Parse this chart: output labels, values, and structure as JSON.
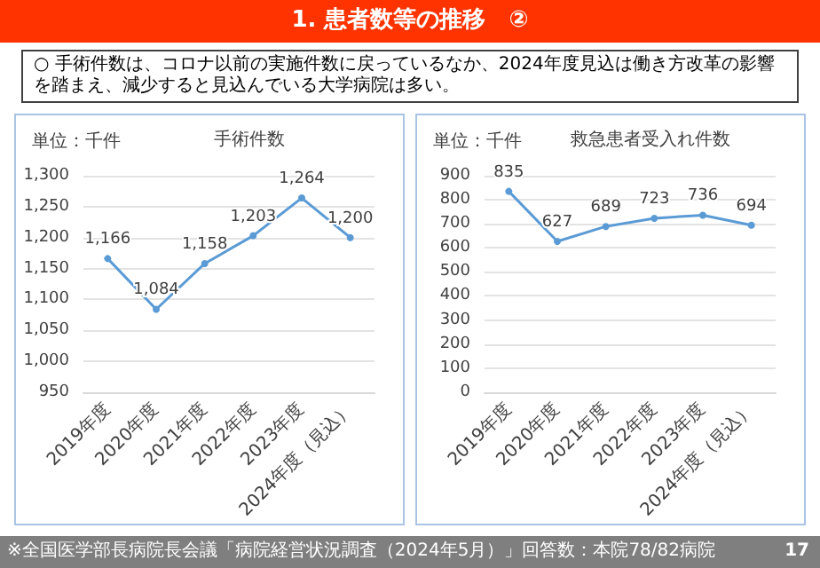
{
  "chart_data": [
    {
      "type": "line",
      "title": "手術件数",
      "ylabel": "単位：千件",
      "categories": [
        "2019年度",
        "2020年度",
        "2021年度",
        "2022年度",
        "2023年度",
        "2024年度（見込）"
      ],
      "series": [
        {
          "color": "#5b9bd5",
          "values": [
            1166,
            1084,
            1158,
            1203,
            1264,
            1200
          ],
          "value_labels": [
            "1,166",
            "1,084",
            "1,158",
            "1,203",
            "1,264",
            "1,200"
          ]
        }
      ],
      "ylim": [
        950,
        1300
      ],
      "yticks": [
        950,
        {
          "value": 1000,
          "label": "1,000"
        },
        {
          "value": 1050,
          "label": "1,050"
        },
        {
          "value": 1100,
          "label": "1,100"
        },
        {
          "value": 1150,
          "label": "1,150"
        },
        {
          "value": 1200,
          "label": "1,200"
        },
        {
          "value": 1250,
          "label": "1,250"
        },
        {
          "value": 1300,
          "label": "1,300"
        }
      ],
      "grid": "y",
      "marker": "circle",
      "line_style": "solid",
      "annotations": [
        "1. 患者数等の推移　②",
        "○ 手術件数は、コロナ以前の実施件数に戻っているなか、2024年度見込は働き方改革の影響を踏まえ、減少すると見込んでいる大学病院は多い。",
        "※全国医学部長病院長会議「病院経営状況調査（2024年5月）」回答数：本院78/82病院",
        "17"
      ]
    },
    {
      "type": "line",
      "title": "救急患者受入れ件数",
      "ylabel": "単位：千件",
      "categories": [
        "2019年度",
        "2020年度",
        "2021年度",
        "2022年度",
        "2023年度",
        "2024年度（見込）"
      ],
      "series": [
        {
          "color": "#5b9bd5",
          "values": [
            835,
            627,
            689,
            723,
            736,
            694
          ]
        }
      ],
      "ylim": [
        0,
        900
      ],
      "yticks": [
        0,
        100,
        200,
        300,
        400,
        500,
        600,
        700,
        800,
        900
      ],
      "grid": "y",
      "marker": "circle",
      "line_style": "solid",
      "data_labels": true
    }
  ]
}
